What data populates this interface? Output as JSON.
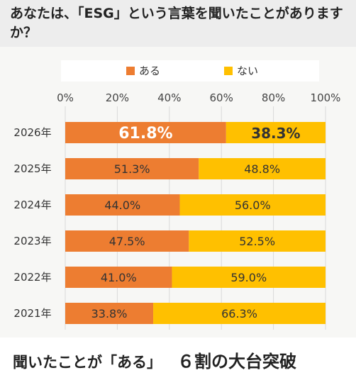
{
  "question": "あなたは、「ESG」という言葉を聞いたことがありますか？",
  "conclusion": {
    "lead": "聞いたことが「ある」",
    "highlight": "６割の大台突破"
  },
  "colors": {
    "aru": "#ed7d31",
    "nai": "#ffc000"
  },
  "chart_data": {
    "type": "bar",
    "orientation": "horizontal",
    "stacked": true,
    "categories": [
      "2026年",
      "2025年",
      "2024年",
      "2023年",
      "2022年",
      "2021年"
    ],
    "series": [
      {
        "name": "ある",
        "values": [
          61.8,
          51.3,
          44.0,
          47.5,
          41.0,
          33.8
        ],
        "labels": [
          "61.8%",
          "51.3%",
          "44.0%",
          "47.5%",
          "41.0%",
          "33.8%"
        ]
      },
      {
        "name": "ない",
        "values": [
          38.3,
          48.8,
          56.0,
          52.5,
          59.0,
          66.3
        ],
        "labels": [
          "38.3%",
          "48.8%",
          "56.0%",
          "52.5%",
          "59.0%",
          "66.3%"
        ]
      }
    ],
    "x_ticks": [
      "0%",
      "20%",
      "40%",
      "60%",
      "80%",
      "100%"
    ],
    "xlim": [
      0,
      100
    ],
    "highlight_category": "2026年",
    "legend_position": "top",
    "grid": "vertical"
  }
}
